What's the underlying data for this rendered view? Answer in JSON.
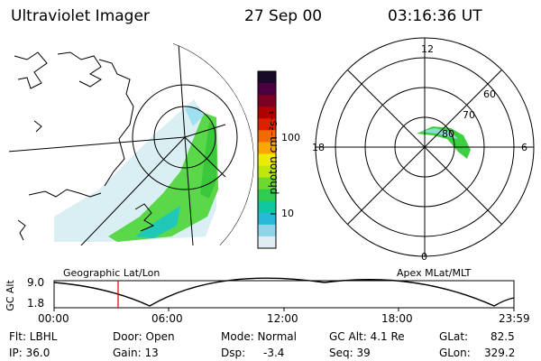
{
  "header": {
    "title": "Ultraviolet Imager",
    "date": "27 Sep 00",
    "time": "03:16:36 UT"
  },
  "geo_panel": {
    "label": "Geographic Lat/Lon"
  },
  "colorbar": {
    "unit_label": "photon cm⁻²s⁻¹",
    "ticks": [
      "100",
      "10"
    ],
    "colors": [
      "#1a0a2a",
      "#4a0040",
      "#7a0024",
      "#b00000",
      "#dc2000",
      "#f46a00",
      "#f8a800",
      "#ecec00",
      "#bde80a",
      "#6cd830",
      "#30cc50",
      "#10c8a0",
      "#28b8d8",
      "#90d4e8",
      "#e0eef4"
    ]
  },
  "polar_panel": {
    "label": "Apex MLat/MLT",
    "mlt_labels": {
      "top": "12",
      "bottom": "0",
      "left": "18",
      "right": "6"
    },
    "lat_labels": [
      "60",
      "70",
      "80"
    ]
  },
  "altitude_plot": {
    "ylabel": "GC Alt",
    "y_top": "9.0",
    "y_bottom": "1.8",
    "x_ticks": [
      "00:00",
      "06:00",
      "12:00",
      "18:00",
      "23:59"
    ]
  },
  "info": {
    "flt": "Flt: LBHL",
    "ip": "IP: 36.0",
    "door": "Door: Open",
    "gain": "Gain: 13",
    "mode": "Mode: Normal",
    "dsp": "Dsp:",
    "dsp_val": "-3.4",
    "gcalt": "GC Alt: 4.1 Re",
    "seq": "Seq: 39",
    "glat": "GLat:",
    "glat_val": "82.5",
    "glon": "GLon:",
    "glon_val": "329.2"
  }
}
